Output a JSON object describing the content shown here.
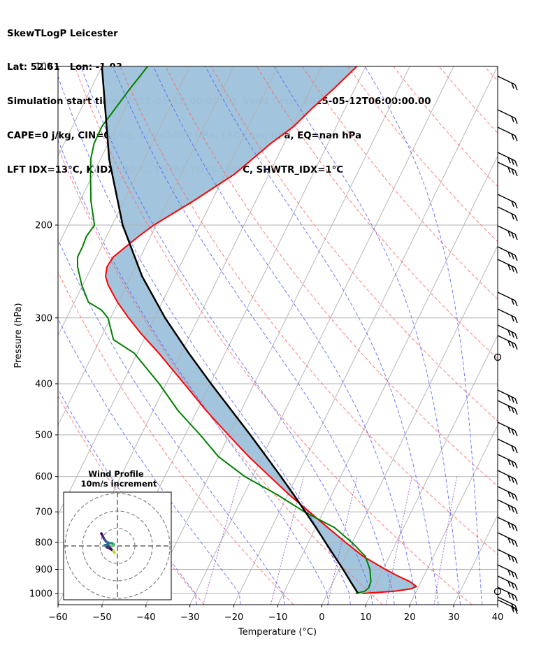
{
  "header": {
    "line1": "SkewTLogP Leicester",
    "line2": "Lat: 52.61   Lon: -1.03",
    "line3": "Simulation start time: 2025-05-12_00:00:00, Valid time: 2025-05-12T06:00:00.00",
    "line4": "CAPE=0 j/kg, CIN=0 j/kg, LCL=1002 hPa, LFC=nan hPa, EQ=nan hPa",
    "line5": "LFT IDX=13°C, K IDX=30°C, TOTAL TOTS=52°C, SHWTR_IDX=1°C"
  },
  "hodograph": {
    "title_line1": "Wind Profile",
    "title_line2": "10m/s increment"
  },
  "colors": {
    "temperature": "#ff0000",
    "dewpoint": "#008000",
    "parcel": "#000000",
    "cape_fill": "#a0c4dc",
    "dry_adiabat": "#ff6666",
    "moist_adiabat": "#5566ff",
    "mixing_ratio": "#9955cc",
    "isotherm": "#b0b0b0"
  },
  "chart_data": {
    "type": "line",
    "title": "SkewTLogP Leicester",
    "xlabel": "Temperature (°C)",
    "ylabel": "Pressure (hPa)",
    "xlim": [
      -60,
      40
    ],
    "ylim": [
      1050,
      100
    ],
    "y_scale": "log",
    "grid": true,
    "x_ticks": [
      -60,
      -50,
      -40,
      -30,
      -20,
      -10,
      0,
      10,
      20,
      30,
      40
    ],
    "x_tick_labels": [
      "−60",
      "−50",
      "−40",
      "−30",
      "−20",
      "−10",
      "0",
      "10",
      "20",
      "30",
      "40"
    ],
    "y_ticks": [
      100,
      200,
      300,
      400,
      500,
      600,
      700,
      800,
      900,
      1000
    ],
    "y_tick_labels": [
      "100",
      "200",
      "300",
      "400",
      "500",
      "600",
      "700",
      "800",
      "900",
      "1000"
    ],
    "series": [
      {
        "key": "temperature",
        "pressure": [
          1000,
          990,
          980,
          970,
          950,
          925,
          900,
          850,
          800,
          750,
          700,
          650,
          600,
          550,
          500,
          450,
          400,
          350,
          320,
          300,
          280,
          260,
          250,
          240,
          230,
          220,
          210,
          200,
          180,
          160,
          140,
          130,
          120,
          110,
          100
        ],
        "temp": [
          8.0,
          15.0,
          18.5,
          19.5,
          17.5,
          13.9,
          10.5,
          4.0,
          -1.5,
          -7.2,
          -13.2,
          -19.6,
          -26.1,
          -33.1,
          -40.2,
          -47.9,
          -55.9,
          -65.1,
          -71.6,
          -75.9,
          -80.2,
          -84.2,
          -85.8,
          -86.5,
          -86.2,
          -84.5,
          -82.7,
          -80.5,
          -74.2,
          -67.8,
          -63.0,
          -59.7,
          -57.5,
          -54.7,
          -52.0
        ]
      },
      {
        "key": "dewpoint",
        "pressure": [
          1000,
          990,
          975,
          950,
          900,
          850,
          800,
          750,
          700,
          650,
          600,
          550,
          500,
          450,
          400,
          350,
          330,
          300,
          290,
          280,
          260,
          240,
          230,
          220,
          210,
          200,
          180,
          160,
          150,
          140,
          130,
          110,
          100
        ],
        "temp": [
          6.5,
          8.3,
          8.8,
          8.6,
          7.0,
          4.5,
          -0.1,
          -5.7,
          -14.3,
          -22.3,
          -31.8,
          -40.0,
          -46.6,
          -54.3,
          -61.6,
          -70.7,
          -76.9,
          -80.6,
          -82.9,
          -86.8,
          -90.2,
          -93.2,
          -94.3,
          -94.3,
          -94.6,
          -94.0,
          -97.5,
          -100.6,
          -102.2,
          -103.2,
          -103.3,
          -101.1,
          -99.6
        ]
      },
      {
        "key": "parcel",
        "pressure": [
          1000,
          950,
          900,
          850,
          800,
          750,
          700,
          650,
          600,
          550,
          500,
          450,
          400,
          350,
          300,
          250,
          200,
          150,
          100
        ],
        "temp": [
          7.0,
          4.0,
          0.9,
          -2.5,
          -6.1,
          -9.9,
          -14.1,
          -18.6,
          -23.6,
          -29.1,
          -35.2,
          -42.1,
          -49.8,
          -58.3,
          -67.6,
          -77.5,
          -87.6,
          -98.0,
          -110.0
        ]
      }
    ]
  }
}
